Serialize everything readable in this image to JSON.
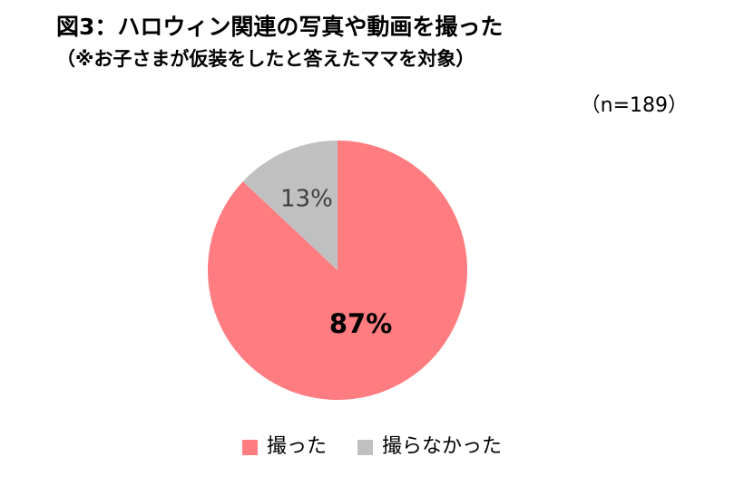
{
  "chart_data": {
    "type": "pie",
    "title": "図3：ハロウィン関連の写真や動画を撮った",
    "subtitle": "（※お子さまが仮装をしたと答えたママを対象）",
    "sample_size_label": "（n=189）",
    "slices": [
      {
        "label": "撮った",
        "value": 87,
        "value_label": "87%",
        "color": "#ff7c80",
        "label_color": "#000000",
        "label_bold": true
      },
      {
        "label": "撮らなかった",
        "value": 13,
        "value_label": "13%",
        "color": "#c0c0c0",
        "label_color": "#404040",
        "label_bold": false
      }
    ],
    "start_angle_deg": 0,
    "direction": "clockwise",
    "legend_position": "bottom"
  }
}
